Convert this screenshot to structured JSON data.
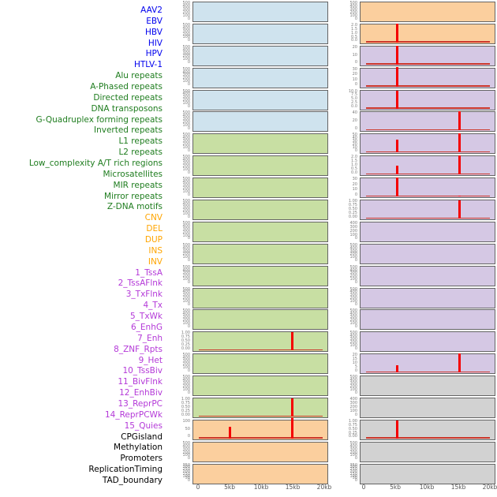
{
  "chart_data": {
    "type": "small_multiples_tracks",
    "description": "44 genomic annotation tracks shown as 22 rows x 2 columns of mini bar/line plots over a 0-20kb window; red spikes mark feature density peaks at ~5kb and ~15kb",
    "x_axis": {
      "ticks": [
        "0",
        "5kb",
        "10kb",
        "15kb",
        "20kb"
      ],
      "range_kb": [
        0,
        20
      ]
    },
    "layout": {
      "columns": 2,
      "rows_per_column": 22,
      "left_column_tracks": "1-22",
      "right_column_tracks": "23-44",
      "legend": "none",
      "grid": "off"
    },
    "colors": {
      "virus": {
        "label": "#0000ee",
        "panel": "#cfe3ee"
      },
      "repeats": {
        "label": "#1f7d1f",
        "panel": "#c8dfa3"
      },
      "sv": {
        "label": "#ffa500",
        "panel": "#fbcf9e"
      },
      "chromatin": {
        "label": "#b439d8",
        "panel": "#d5c8e4"
      },
      "other": {
        "label": "#000000",
        "panel": "#d2d2d2"
      },
      "spike": "#f40000",
      "baseline": "#cc372b",
      "panel_border": "#646464",
      "ytick_text": "#7d7d7d",
      "xtick_text": "#555555"
    },
    "tracks": [
      {
        "name": "AAV2",
        "group": "virus",
        "y_ticks": [
          "500",
          "400",
          "300",
          "200",
          "100",
          "0"
        ],
        "ymax": 500,
        "spikes": [],
        "baseline": false
      },
      {
        "name": "EBV",
        "group": "virus",
        "y_ticks": [
          "500",
          "400",
          "300",
          "200",
          "100",
          "0"
        ],
        "ymax": 500,
        "spikes": [],
        "baseline": false
      },
      {
        "name": "HBV",
        "group": "virus",
        "y_ticks": [
          "500",
          "400",
          "300",
          "200",
          "100",
          "0"
        ],
        "ymax": 500,
        "spikes": [],
        "baseline": false
      },
      {
        "name": "HIV",
        "group": "virus",
        "y_ticks": [
          "500",
          "400",
          "300",
          "200",
          "100",
          "0"
        ],
        "ymax": 500,
        "spikes": [],
        "baseline": false
      },
      {
        "name": "HPV",
        "group": "virus",
        "y_ticks": [
          "500",
          "400",
          "300",
          "200",
          "100",
          "0"
        ],
        "ymax": 500,
        "spikes": [],
        "baseline": false
      },
      {
        "name": "HTLV-1",
        "group": "virus",
        "y_ticks": [
          "500",
          "400",
          "300",
          "200",
          "100",
          "0"
        ],
        "ymax": 500,
        "spikes": [],
        "baseline": false
      },
      {
        "name": "Alu repeats",
        "group": "repeats",
        "y_ticks": [
          "500",
          "400",
          "300",
          "200",
          "100",
          "0"
        ],
        "ymax": 500,
        "spikes": [],
        "baseline": false
      },
      {
        "name": "A-Phased repeats",
        "group": "repeats",
        "y_ticks": [
          "500",
          "400",
          "300",
          "200",
          "100",
          "0"
        ],
        "ymax": 500,
        "spikes": [],
        "baseline": false
      },
      {
        "name": "Directed repeats",
        "group": "repeats",
        "y_ticks": [
          "500",
          "400",
          "300",
          "200",
          "100",
          "0"
        ],
        "ymax": 500,
        "spikes": [],
        "baseline": false
      },
      {
        "name": "DNA transposons",
        "group": "repeats",
        "y_ticks": [
          "500",
          "400",
          "300",
          "200",
          "100",
          "0"
        ],
        "ymax": 500,
        "spikes": [],
        "baseline": false
      },
      {
        "name": "G-Quadruplex forming repeats",
        "group": "repeats",
        "y_ticks": [
          "500",
          "400",
          "300",
          "200",
          "100",
          "0"
        ],
        "ymax": 500,
        "spikes": [],
        "baseline": false
      },
      {
        "name": "Inverted repeats",
        "group": "repeats",
        "y_ticks": [
          "500",
          "400",
          "300",
          "200",
          "100",
          "0"
        ],
        "ymax": 500,
        "spikes": [],
        "baseline": false
      },
      {
        "name": "L1 repeats",
        "group": "repeats",
        "y_ticks": [
          "500",
          "400",
          "300",
          "200",
          "100",
          "0"
        ],
        "ymax": 500,
        "spikes": [],
        "baseline": false
      },
      {
        "name": "L2 repeats",
        "group": "repeats",
        "y_ticks": [
          "500",
          "400",
          "300",
          "200",
          "100",
          "0"
        ],
        "ymax": 500,
        "spikes": [],
        "baseline": false
      },
      {
        "name": "Low_complexity A/T rich regions",
        "group": "repeats",
        "y_ticks": [
          "500",
          "400",
          "300",
          "200",
          "100",
          "0"
        ],
        "ymax": 500,
        "spikes": [],
        "baseline": false
      },
      {
        "name": "Microsatellites",
        "group": "repeats",
        "y_ticks": [
          "1.00",
          "0.75",
          "0.50",
          "0.25",
          "0.00"
        ],
        "ymax": 1,
        "spikes": [
          {
            "x_kb": 15,
            "v": 1.0
          }
        ],
        "baseline": true
      },
      {
        "name": "MIR repeats",
        "group": "repeats",
        "y_ticks": [
          "500",
          "400",
          "300",
          "200",
          "100",
          "0"
        ],
        "ymax": 500,
        "spikes": [],
        "baseline": false
      },
      {
        "name": "Mirror repeats",
        "group": "repeats",
        "y_ticks": [
          "500",
          "400",
          "300",
          "200",
          "100",
          "0"
        ],
        "ymax": 500,
        "spikes": [],
        "baseline": false
      },
      {
        "name": "Z-DNA motifs",
        "group": "repeats",
        "y_ticks": [
          "1.00",
          "0.75",
          "0.50",
          "0.25",
          "0.00"
        ],
        "ymax": 1,
        "spikes": [
          {
            "x_kb": 15,
            "v": 1.0
          }
        ],
        "baseline": true
      },
      {
        "name": "CNV",
        "group": "sv",
        "y_ticks": [
          "100",
          "50",
          "0"
        ],
        "ymax": 100,
        "spikes": [
          {
            "x_kb": 5,
            "v": 65
          },
          {
            "x_kb": 15,
            "v": 118
          }
        ],
        "baseline": true
      },
      {
        "name": "DEL",
        "group": "sv",
        "y_ticks": [
          "500",
          "400",
          "300",
          "200",
          "100",
          "0"
        ],
        "ymax": 500,
        "spikes": [],
        "baseline": false
      },
      {
        "name": "DUP",
        "group": "sv",
        "y_ticks": [
          "350",
          "300",
          "250",
          "200",
          "150",
          "100",
          "50",
          "0"
        ],
        "ymax": 350,
        "spikes": [],
        "baseline": false
      },
      {
        "name": "INS",
        "group": "sv",
        "y_ticks": [
          "500",
          "400",
          "300",
          "200",
          "100",
          "0"
        ],
        "ymax": 500,
        "spikes": [],
        "baseline": false
      },
      {
        "name": "INV",
        "group": "sv",
        "y_ticks": [
          "2.0",
          "1.5",
          "1.0",
          "0.5",
          "0.0"
        ],
        "ymax": 2,
        "spikes": [
          {
            "x_kb": 5,
            "v": 2.05
          }
        ],
        "baseline": true
      },
      {
        "name": "1_TssA",
        "group": "chromatin",
        "y_ticks": [
          "20",
          "10",
          "0"
        ],
        "ymax": 20,
        "spikes": [
          {
            "x_kb": 5,
            "v": 21
          }
        ],
        "baseline": true
      },
      {
        "name": "2_TssAFlnk",
        "group": "chromatin",
        "y_ticks": [
          "30",
          "20",
          "10",
          "0"
        ],
        "ymax": 30,
        "spikes": [
          {
            "x_kb": 5,
            "v": 32
          }
        ],
        "baseline": true
      },
      {
        "name": "3_TxFlnk",
        "group": "chromatin",
        "y_ticks": [
          "10.0",
          "7.5",
          "5.0",
          "2.5",
          "0.0"
        ],
        "ymax": 10,
        "spikes": [
          {
            "x_kb": 5,
            "v": 10
          }
        ],
        "baseline": true
      },
      {
        "name": "4_Tx",
        "group": "chromatin",
        "y_ticks": [
          "40",
          "20",
          "0"
        ],
        "ymax": 40,
        "spikes": [
          {
            "x_kb": 15,
            "v": 42
          }
        ],
        "baseline": true
      },
      {
        "name": "5_TxWk",
        "group": "chromatin",
        "y_ticks": [
          "50",
          "40",
          "30",
          "20",
          "10",
          "0"
        ],
        "ymax": 50,
        "spikes": [
          {
            "x_kb": 5,
            "v": 36
          },
          {
            "x_kb": 15,
            "v": 52
          }
        ],
        "baseline": true
      },
      {
        "name": "6_EnhG",
        "group": "chromatin",
        "y_ticks": [
          "2.0",
          "1.5",
          "1.0",
          "0.5",
          "0.0"
        ],
        "ymax": 2,
        "spikes": [
          {
            "x_kb": 5,
            "v": 1.0
          },
          {
            "x_kb": 15,
            "v": 2.1
          }
        ],
        "baseline": true
      },
      {
        "name": "7_Enh",
        "group": "chromatin",
        "y_ticks": [
          "30",
          "20",
          "10",
          "0"
        ],
        "ymax": 30,
        "spikes": [
          {
            "x_kb": 5,
            "v": 31
          },
          {
            "x_kb": 15,
            "v": 2
          }
        ],
        "baseline": true
      },
      {
        "name": "8_ZNF_Rpts",
        "group": "chromatin",
        "y_ticks": [
          "1.00",
          "0.75",
          "0.50",
          "0.25",
          "0.00"
        ],
        "ymax": 1,
        "spikes": [
          {
            "x_kb": 15,
            "v": 1.0
          }
        ],
        "baseline": true
      },
      {
        "name": "9_Het",
        "group": "chromatin",
        "y_ticks": [
          "400",
          "300",
          "200",
          "100",
          "0"
        ],
        "ymax": 400,
        "spikes": [],
        "baseline": false
      },
      {
        "name": "10_TssBiv",
        "group": "chromatin",
        "y_ticks": [
          "500",
          "400",
          "300",
          "200",
          "100",
          "0"
        ],
        "ymax": 500,
        "spikes": [],
        "baseline": false
      },
      {
        "name": "11_BivFlnk",
        "group": "chromatin",
        "y_ticks": [
          "500",
          "400",
          "300",
          "200",
          "100",
          "0"
        ],
        "ymax": 500,
        "spikes": [],
        "baseline": false
      },
      {
        "name": "12_EnhBiv",
        "group": "chromatin",
        "y_ticks": [
          "500",
          "400",
          "300",
          "200",
          "100",
          "0"
        ],
        "ymax": 500,
        "spikes": [],
        "baseline": false
      },
      {
        "name": "13_ReprPC",
        "group": "chromatin",
        "y_ticks": [
          "500",
          "400",
          "300",
          "200",
          "100",
          "0"
        ],
        "ymax": 500,
        "spikes": [],
        "baseline": false
      },
      {
        "name": "14_ReprPCWk",
        "group": "chromatin",
        "y_ticks": [
          "500",
          "400",
          "300",
          "200",
          "100",
          "0"
        ],
        "ymax": 500,
        "spikes": [],
        "baseline": false
      },
      {
        "name": "15_Quies",
        "group": "chromatin",
        "y_ticks": [
          "20",
          "15",
          "10",
          "5",
          "0"
        ],
        "ymax": 20,
        "spikes": [
          {
            "x_kb": 5,
            "v": 8
          },
          {
            "x_kb": 15,
            "v": 21.5
          }
        ],
        "baseline": true
      },
      {
        "name": "CPGisland",
        "group": "other",
        "y_ticks": [
          "500",
          "400",
          "300",
          "200",
          "100",
          "0"
        ],
        "ymax": 500,
        "spikes": [],
        "baseline": false
      },
      {
        "name": "Methylation",
        "group": "other",
        "y_ticks": [
          "400",
          "300",
          "200",
          "100",
          "0"
        ],
        "ymax": 400,
        "spikes": [],
        "baseline": false
      },
      {
        "name": "Promoters",
        "group": "other",
        "y_ticks": [
          "1.00",
          "0.75",
          "0.50",
          "0.25",
          "0.00"
        ],
        "ymax": 1,
        "spikes": [
          {
            "x_kb": 5,
            "v": 1.0
          }
        ],
        "baseline": true
      },
      {
        "name": "ReplicationTiming",
        "group": "other",
        "y_ticks": [
          "500",
          "400",
          "300",
          "200",
          "100",
          "0"
        ],
        "ymax": 500,
        "spikes": [],
        "baseline": false
      },
      {
        "name": "TAD_boundary",
        "group": "other",
        "y_ticks": [
          "350",
          "300",
          "250",
          "200",
          "150",
          "100",
          "50",
          "0"
        ],
        "ymax": 350,
        "spikes": [],
        "baseline": false
      }
    ]
  }
}
